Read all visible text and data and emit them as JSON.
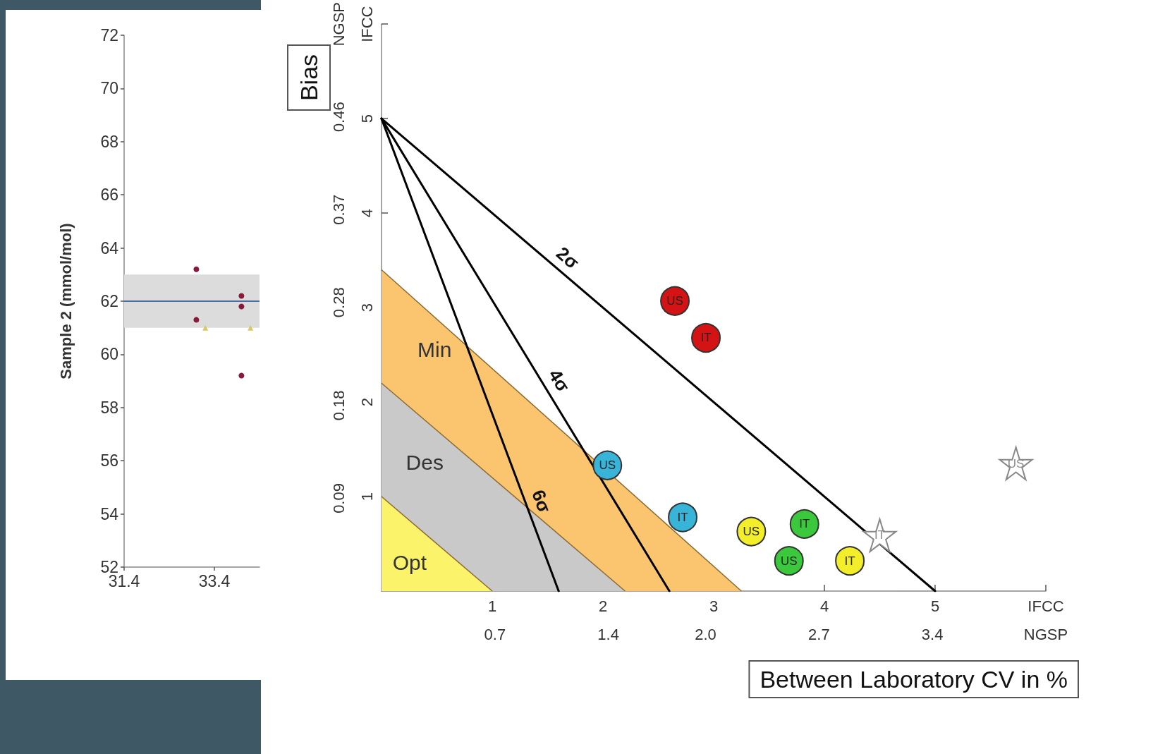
{
  "chart_data": [
    {
      "type": "scatter",
      "ylabel": "Sample 2 (mmol/mol)",
      "xlim": [
        31.4,
        34.4
      ],
      "xticks": [
        31.4,
        33.4
      ],
      "ylim": [
        52,
        72
      ],
      "yticks": [
        52,
        54,
        56,
        58,
        60,
        62,
        64,
        66,
        68,
        70,
        72
      ],
      "grid": false,
      "legend": false,
      "marker": "circle",
      "series": [
        {
          "color": "#8b1a3a",
          "x": [
            33.0,
            33.0,
            34.0,
            34.0,
            34.0
          ],
          "values": [
            63.2,
            61.3,
            62.2,
            61.8,
            59.2
          ]
        },
        {
          "color": "#d8c860",
          "marker": "triangle",
          "x": [
            33.2,
            34.2
          ],
          "values": [
            61.0,
            61.0
          ]
        }
      ],
      "ref_lines": [
        {
          "axis": "y",
          "value": 62,
          "color": "#4a6fa5"
        }
      ],
      "bands": [
        {
          "axis": "y",
          "from": 61,
          "to": 63,
          "color": "#dcdcdc"
        }
      ]
    },
    {
      "type": "scatter",
      "xlabel": "Between Laboratory CV in %",
      "y2label": "Bias",
      "xlim": [
        0,
        6
      ],
      "xticks": [
        1,
        2,
        3,
        4,
        5,
        {
          "value": 6,
          "label": "IFCC"
        }
      ],
      "x2lim": [
        0,
        4.1
      ],
      "x2ticks": [
        0.7,
        1.4,
        {
          "value": 2.0,
          "label": "2.0"
        },
        2.7,
        3.4,
        {
          "value": 4.1,
          "label": "NGSP"
        }
      ],
      "ylim": [
        0,
        6
      ],
      "yticks": [
        1,
        2,
        3,
        4,
        5,
        {
          "value": 6,
          "label": "IFCC"
        }
      ],
      "y2lim": [
        0,
        0.55
      ],
      "y2ticks": [
        0.09,
        0.18,
        0.28,
        0.37,
        0.46,
        {
          "value": 0.55,
          "label": "NGSP"
        }
      ],
      "grid": false,
      "legend": false,
      "series": [
        {
          "type": "area",
          "name": "Min",
          "color": "#fbc56f",
          "x": [
            0,
            3.25
          ],
          "values": [
            3.4,
            0
          ]
        },
        {
          "type": "area",
          "name": "Des",
          "color": "#c9c9c9",
          "x": [
            0,
            2.2
          ],
          "values": [
            2.2,
            0
          ]
        },
        {
          "type": "area",
          "name": "Opt",
          "color": "#fbf36a",
          "x": [
            0,
            1
          ],
          "values": [
            1,
            0
          ]
        },
        {
          "type": "line",
          "name": "2σ",
          "color": "#000000",
          "x": [
            0,
            5
          ],
          "values": [
            5,
            0
          ]
        },
        {
          "type": "line",
          "name": "4σ",
          "color": "#000000",
          "x": [
            0,
            2.6
          ],
          "values": [
            5,
            0
          ]
        },
        {
          "type": "line",
          "name": "6σ",
          "color": "#000000",
          "x": [
            0,
            1.6
          ],
          "values": [
            5,
            0
          ]
        },
        {
          "color": "#d41414",
          "marker": "circle",
          "x": [
            2.65,
            2.93
          ],
          "values": [
            3.07,
            2.68
          ],
          "value_labels": [
            "US",
            "IT"
          ]
        },
        {
          "color": "#38b4d8",
          "marker": "circle",
          "x": [
            2.04,
            2.72
          ],
          "values": [
            1.33,
            0.78
          ],
          "value_labels": [
            "US",
            "IT"
          ]
        },
        {
          "color": "#f2ee2a",
          "marker": "circle",
          "x": [
            3.34,
            4.23
          ],
          "values": [
            0.63,
            0.32
          ],
          "value_labels": [
            "US",
            "IT"
          ]
        },
        {
          "color": "#3cc83c",
          "marker": "circle",
          "x": [
            3.68,
            3.82
          ],
          "values": [
            0.32,
            0.71
          ],
          "value_labels": [
            "US",
            "IT"
          ]
        },
        {
          "color": "#888888",
          "marker": "star",
          "x": [
            5.73,
            4.5
          ],
          "values": [
            1.35,
            0.59
          ],
          "value_labels": [
            "US",
            "IT"
          ]
        }
      ]
    }
  ]
}
